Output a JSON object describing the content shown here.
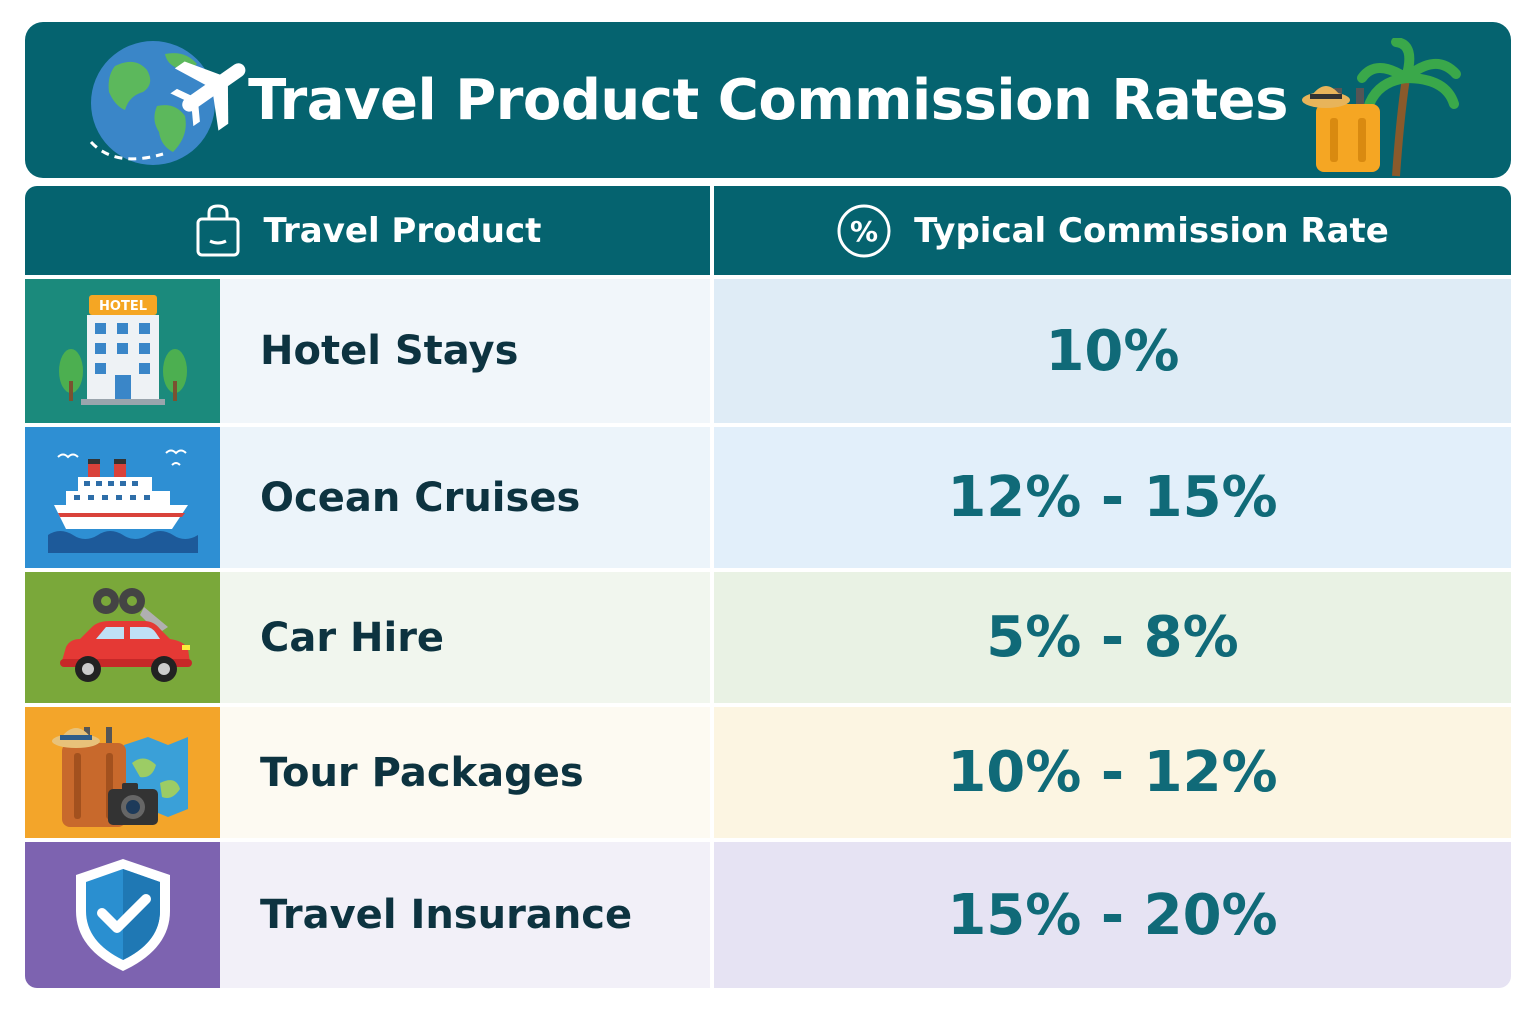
{
  "header": {
    "title": "Travel Product Commission Rates"
  },
  "columns": {
    "product": "Travel Product",
    "rate": "Typical Commission Rate"
  },
  "rows": [
    {
      "product": "Hotel Stays",
      "rate": "10%",
      "icon": "hotel-icon",
      "icon_label": "HOTEL",
      "icon_bg": "#1b8a7c",
      "name_bg": "#f1f6fa",
      "rate_bg": "#dfecf6"
    },
    {
      "product": "Ocean Cruises",
      "rate": "12% - 15%",
      "icon": "cruise-ship-icon",
      "icon_bg": "#2e8fd3",
      "name_bg": "#ecf4fa",
      "rate_bg": "#e2effa"
    },
    {
      "product": "Car Hire",
      "rate": "5% - 8%",
      "icon": "car-icon",
      "icon_bg": "#7aa83a",
      "name_bg": "#f1f6ee",
      "rate_bg": "#e9f2e4"
    },
    {
      "product": "Tour Packages",
      "rate": "10% - 12%",
      "icon": "tour-package-icon",
      "icon_bg": "#f3a52a",
      "name_bg": "#fdfaf2",
      "rate_bg": "#fcf5e2"
    },
    {
      "product": "Travel Insurance",
      "rate": "15% - 20%",
      "icon": "shield-check-icon",
      "icon_bg": "#7d63b0",
      "name_bg": "#f2f0f8",
      "rate_bg": "#e6e3f3"
    }
  ],
  "colors": {
    "header_bg": "#05636f",
    "rate_text": "#106a78",
    "name_text": "#0d3340"
  }
}
